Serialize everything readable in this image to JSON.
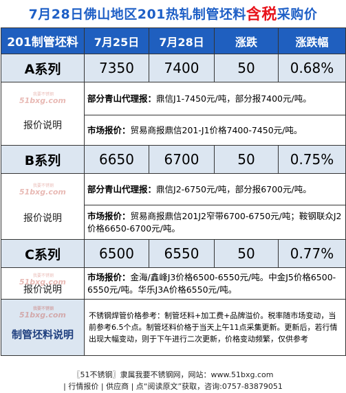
{
  "title": {
    "prefix": "7月28日佛山地区201热轧制管坯料",
    "highlight": "含税",
    "suffix": "采购价"
  },
  "header": {
    "col1": "201制管坯料",
    "col2": "7月25日",
    "col3": "7月28日",
    "col4": "涨跌",
    "col5": "涨跌幅"
  },
  "watermark": {
    "main": "51bxg.com",
    "small": "我要不锈钢"
  },
  "note_label": "报价说明",
  "series": [
    {
      "name": "A系列",
      "p1": "7350",
      "p2": "7400",
      "chg": "50",
      "pct": "0.68%",
      "agent_label": "部分青山代理报：",
      "agent_text": "鼎信J1-7450元/吨，部分报7400元/吨。",
      "market_label": "市场报价：",
      "market_text": "贸易商报鼎信201-J1价格7400-7450元/吨。"
    },
    {
      "name": "B系列",
      "p1": "6650",
      "p2": "6700",
      "chg": "50",
      "pct": "0.75%",
      "agent_label": "部分青山代理报：",
      "agent_text": "鼎信J2-6750元/吨，部分报6700元/吨。",
      "market_label": "市场报价：",
      "market_text": "贸易商报鼎信201J2窄带6700-6750元/吨；鞍钢联众J2价格6650-6700元/吨。"
    },
    {
      "name": "C系列",
      "p1": "6500",
      "p2": "6550",
      "chg": "50",
      "pct": "0.77%",
      "market_label": "市场报价：",
      "market_text": "金海/鑫峰J3价格6500-6550元/吨。中金J5价格6500-6550元/吨。华乐J3A价格6550元/吨。"
    }
  ],
  "summary": {
    "label": "制管坯料说明",
    "text": "不锈钢焊管价格参考：制管坯料+加工费+品牌溢价。税率随市场变动，当前参考6.5个点。制管坯料价格于当天上午11点采集更新。更新后，若行情出现大幅变动，则于下午进行二次更新，价格变动频繁，仅供参考"
  },
  "footer": {
    "line1": "〖51不锈钢〗隶属我要不锈钢网，网站：www.51bxg.com",
    "line2": "| 行情报价 | 供应商 | 点“阅读原文”获取，咨询:0757-83879051"
  },
  "colors": {
    "title_blue": "#1e5fc6",
    "title_red": "#e8141c",
    "header_bg": "#1f5fbf",
    "row_bg": "#dce6f1"
  }
}
